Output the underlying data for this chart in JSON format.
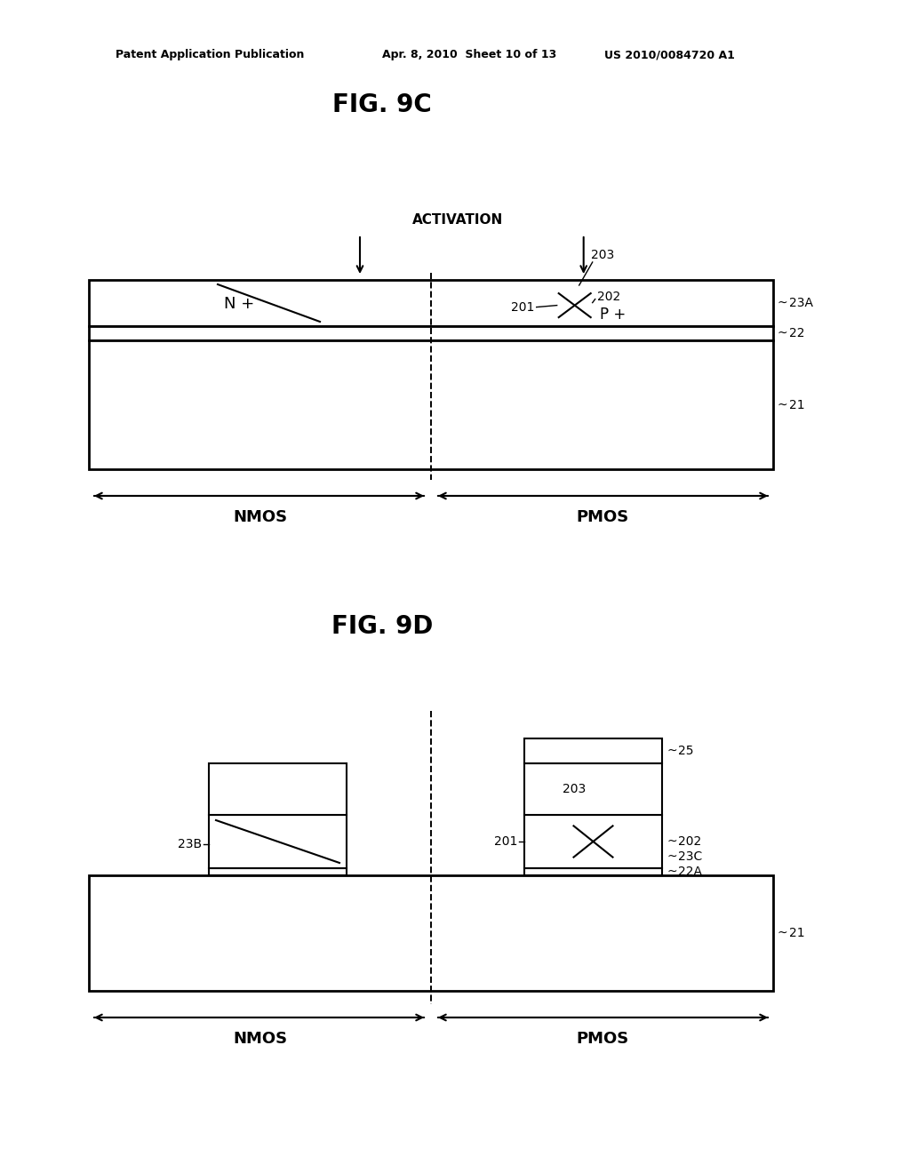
{
  "bg_color": "#ffffff",
  "header_left": "Patent Application Publication",
  "header_mid": "Apr. 8, 2010  Sheet 10 of 13",
  "header_right": "US 2010/0084720 A1",
  "fig9c_title": "FIG. 9C",
  "fig9d_title": "FIG. 9D",
  "activation_label": "ACTIVATION",
  "nmos_label": "NMOS",
  "pmos_label": "PMOS"
}
